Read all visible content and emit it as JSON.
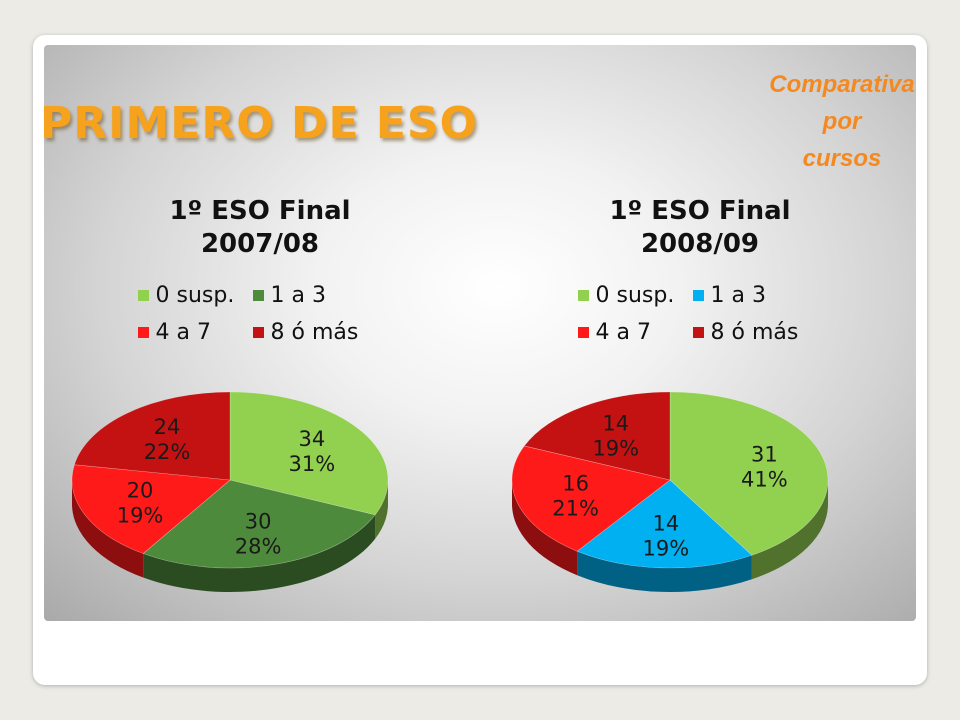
{
  "slide": {
    "title": "PRIMERO DE ESO",
    "note_lines": [
      "Comparativa",
      "por",
      "cursos"
    ]
  },
  "chart_data": [
    {
      "type": "pie",
      "title_lines": [
        "1º ESO Final",
        "2007/08"
      ],
      "categories": [
        "0 susp.",
        "1 a 3",
        "4 a 7",
        "8 ó más"
      ],
      "values": [
        34,
        30,
        20,
        24
      ],
      "percent_labels": [
        "31%",
        "28%",
        "19%",
        "22%"
      ],
      "colors": [
        "#92d050",
        "#4e8a3c",
        "#ff1a1a",
        "#c41212"
      ],
      "legend_position": "top"
    },
    {
      "type": "pie",
      "title_lines": [
        "1º ESO Final",
        "2008/09"
      ],
      "categories": [
        "0 susp.",
        "1 a 3",
        "4 a 7",
        "8 ó más"
      ],
      "values": [
        31,
        14,
        16,
        14
      ],
      "percent_labels": [
        "41%",
        "19%",
        "21%",
        "19%"
      ],
      "colors": [
        "#92d050",
        "#00b0f0",
        "#ff1a1a",
        "#c41212"
      ],
      "legend_position": "top"
    }
  ]
}
